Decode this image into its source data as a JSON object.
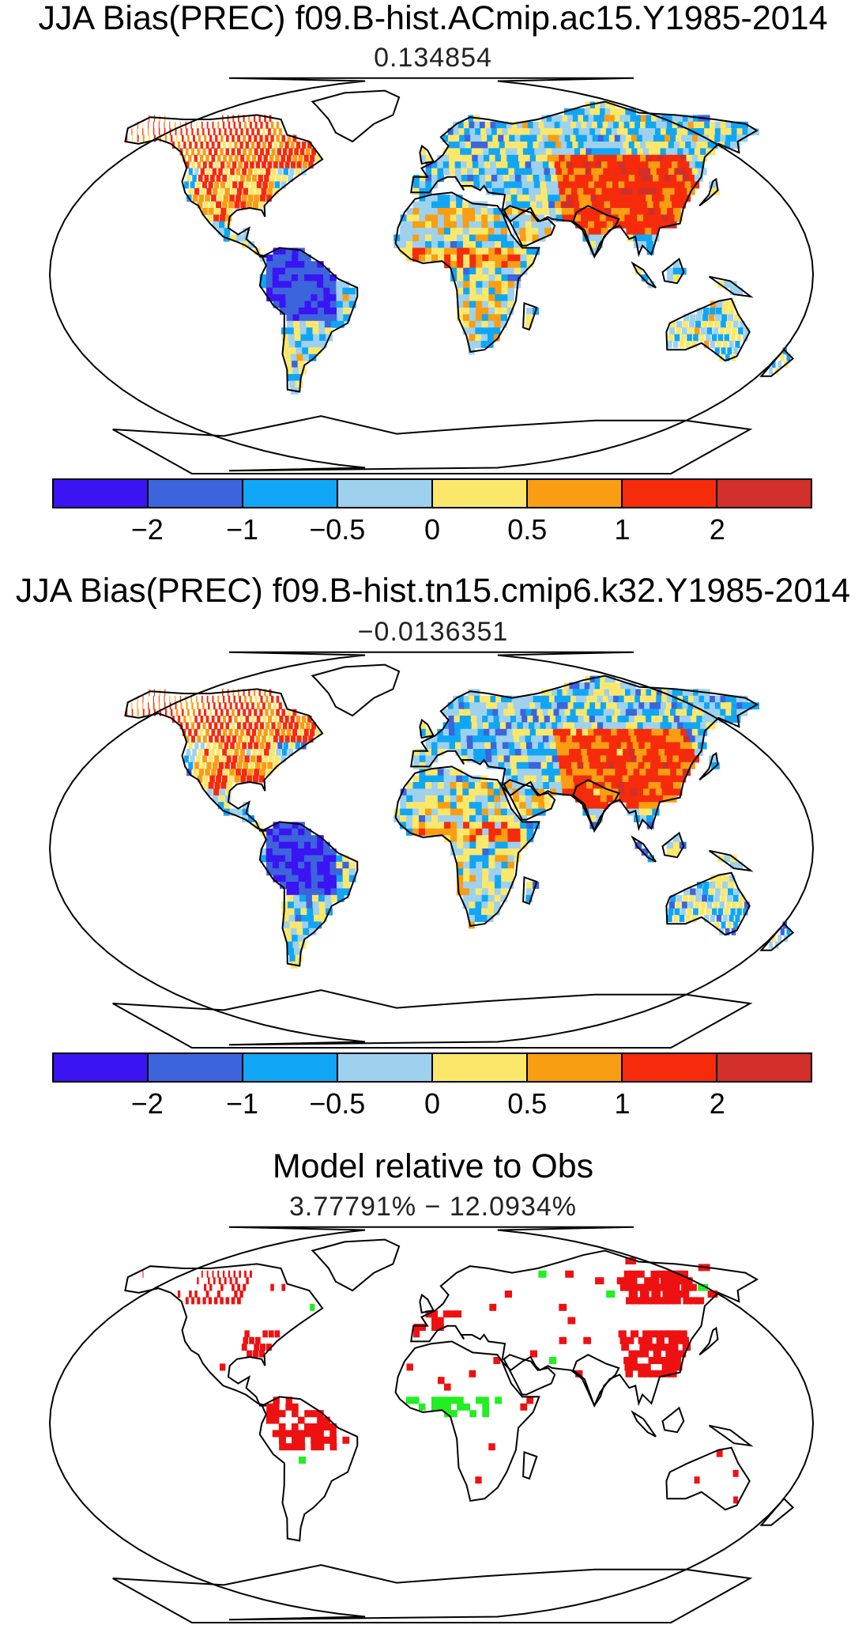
{
  "panels": [
    {
      "title": "JJA Bias(PREC) f09.B-hist.ACmip.ac15.Y1985-2014",
      "value": "0.134854",
      "kind": "bias",
      "variant": 0
    },
    {
      "title": "JJA Bias(PREC) f09.B-hist.tn15.cmip6.k32.Y1985-2014",
      "value": "−0.0136351",
      "kind": "bias",
      "variant": 1
    },
    {
      "title": "Model relative to Obs",
      "value": "3.77791% − 12.0934%",
      "kind": "relative",
      "variant": 2
    }
  ],
  "colorbar": {
    "colors": [
      "#3a14f2",
      "#3c64dc",
      "#10a6f5",
      "#9ed1ee",
      "#fbe86b",
      "#f99d12",
      "#f52b0b",
      "#d22f2a"
    ],
    "tick_labels": [
      "−2",
      "−1",
      "−0.5",
      "0",
      "0.5",
      "1",
      "2"
    ]
  },
  "relative_colors": {
    "model1_better": "#ee1111",
    "model2_better": "#22ee22"
  }
}
